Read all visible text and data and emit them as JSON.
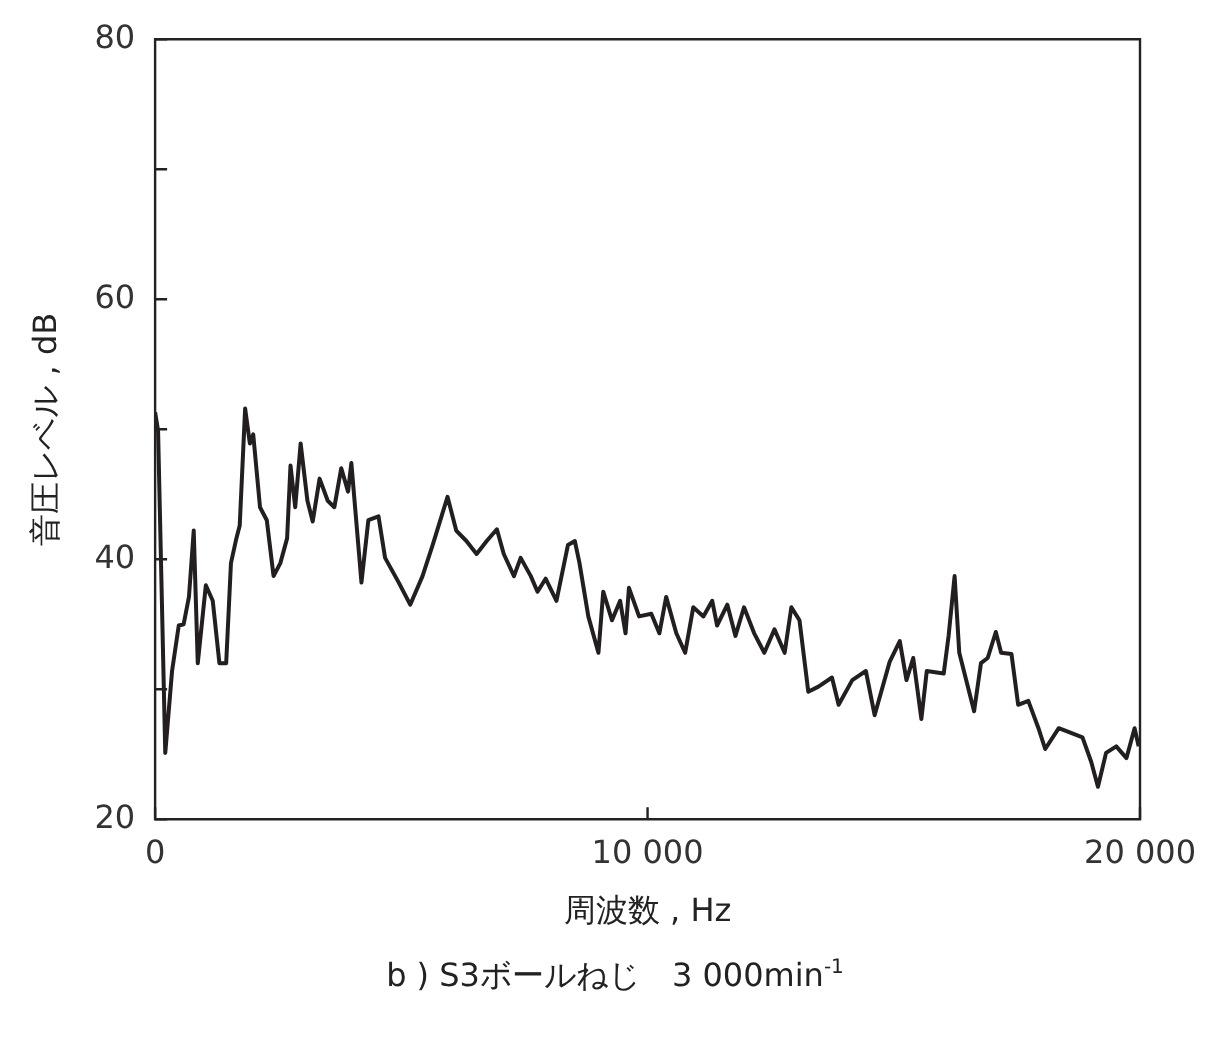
{
  "chart_data": {
    "type": "line",
    "title": "b ) S3ボールねじ　3 000min$^{-1}$",
    "xlabel": "周波数 , Hz",
    "ylabel": "音圧レベル , dB",
    "color": "#231f20",
    "x": [
      0,
      60,
      206,
      344,
      480,
      580,
      687,
      784,
      866,
      1030,
      1170,
      1306,
      1443,
      1540,
      1650,
      1718,
      1828,
      1924,
      1992,
      2130,
      2268,
      2405,
      2543,
      2680,
      2749,
      2845,
      2955,
      3093,
      3200,
      3340,
      3505,
      3640,
      3780,
      3918,
      3985,
      4190,
      4330,
      4536,
      4670,
      4948,
      5180,
      5430,
      5637,
      5938,
      6115,
      6321,
      6528,
      6734,
      6940,
      7080,
      7287,
      7423,
      7629,
      7765,
      7930,
      8150,
      8384,
      8523,
      8618,
      8797,
      9002,
      9100,
      9278,
      9443,
      9553,
      9622,
      9828,
      10076,
      10240,
      10378,
      10584,
      10763,
      10928,
      11134,
      11313,
      11412,
      11620,
      11785,
      11959,
      12165,
      12371,
      12577,
      12784,
      12920,
      13085,
      13264,
      13470,
      13745,
      13880,
      14157,
      14433,
      14611,
      14916,
      15122,
      15258,
      15395,
      15560,
      15670,
      16014,
      16113,
      16235,
      16330,
      16631,
      16770,
      16907,
      17072,
      17180,
      17390,
      17526,
      17732,
      17938,
      18075,
      18350,
      18625,
      18832,
      19010,
      19146,
      19311,
      19518,
      19725,
      19890,
      19973
    ],
    "values": [
      51.3,
      49.9,
      25.1,
      31.4,
      34.9,
      35,
      37.1,
      42.2,
      32,
      38,
      36.8,
      32,
      32,
      39.7,
      41.6,
      42.6,
      51.6,
      48.9,
      49.6,
      44,
      43,
      38.7,
      39.7,
      41.6,
      47.2,
      44,
      48.9,
      44.5,
      42.9,
      46.2,
      44.5,
      44,
      47,
      45.2,
      47.4,
      38.2,
      43,
      43.3,
      40.1,
      38.2,
      36.5,
      38.7,
      41.1,
      44.8,
      42.2,
      41.4,
      40.4,
      41.4,
      42.3,
      40.4,
      38.7,
      40.1,
      38.7,
      37.5,
      38.5,
      36.8,
      41.1,
      41.4,
      39.7,
      35.6,
      32.8,
      37.5,
      35.3,
      36.8,
      34.3,
      37.8,
      35.6,
      35.8,
      34.3,
      37.1,
      34.3,
      32.8,
      36.3,
      35.6,
      36.8,
      34.9,
      36.5,
      34.1,
      36.3,
      34.3,
      32.8,
      34.6,
      32.8,
      36.3,
      35.3,
      29.8,
      30.2,
      30.9,
      28.8,
      30.7,
      31.4,
      28,
      32.1,
      33.7,
      30.7,
      32.4,
      27.7,
      31.4,
      31.2,
      34.1,
      38.7,
      32.8,
      28.3,
      32,
      32.4,
      34.4,
      32.8,
      32.7,
      28.8,
      29.1,
      27,
      25.4,
      27,
      26.6,
      26.3,
      24.4,
      22.5,
      25.1,
      25.6,
      24.7,
      27,
      25.6
    ],
    "xlim": [
      0,
      20000
    ],
    "ylim": [
      20,
      80
    ],
    "xticks": [
      {
        "value": 0,
        "label": "0"
      },
      {
        "value": 10000,
        "label": "10 000"
      },
      {
        "value": 20000,
        "label": "20 000"
      }
    ],
    "yticks": [
      20,
      {
        "value": 30,
        "label": null
      },
      40,
      {
        "value": 50,
        "label": null
      },
      60,
      {
        "value": 70,
        "label": null
      },
      80
    ]
  }
}
